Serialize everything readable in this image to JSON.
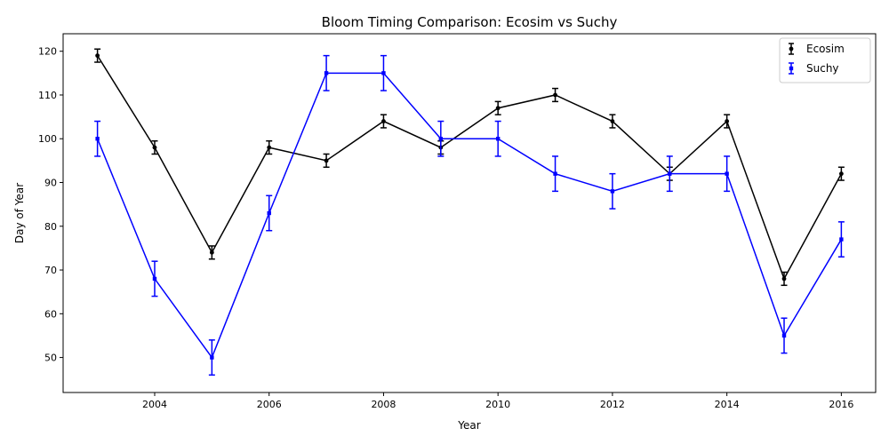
{
  "chart_data": {
    "type": "line",
    "title": "Bloom Timing Comparison: Ecosim vs Suchy",
    "xlabel": "Year",
    "ylabel": "Day of Year",
    "xlim": [
      2002.4,
      2016.6
    ],
    "ylim": [
      42,
      124
    ],
    "xticks": [
      2004,
      2006,
      2008,
      2010,
      2012,
      2014,
      2016
    ],
    "yticks": [
      50,
      60,
      70,
      80,
      90,
      100,
      110,
      120
    ],
    "x": [
      2003,
      2004,
      2005,
      2006,
      2007,
      2008,
      2009,
      2010,
      2011,
      2012,
      2013,
      2014,
      2015,
      2016
    ],
    "grid": false,
    "legend_position": "top-right",
    "series": [
      {
        "name": "Ecosim",
        "color": "#000000",
        "marker": "circle",
        "values": [
          119,
          98,
          74,
          98,
          95,
          104,
          98,
          107,
          110,
          104,
          92,
          104,
          68,
          92
        ],
        "error": 1.5
      },
      {
        "name": "Suchy",
        "color": "#0000ff",
        "marker": "square",
        "values": [
          100,
          68,
          50,
          83,
          115,
          115,
          100,
          100,
          92,
          88,
          92,
          92,
          55,
          77
        ],
        "error": 4
      }
    ]
  }
}
